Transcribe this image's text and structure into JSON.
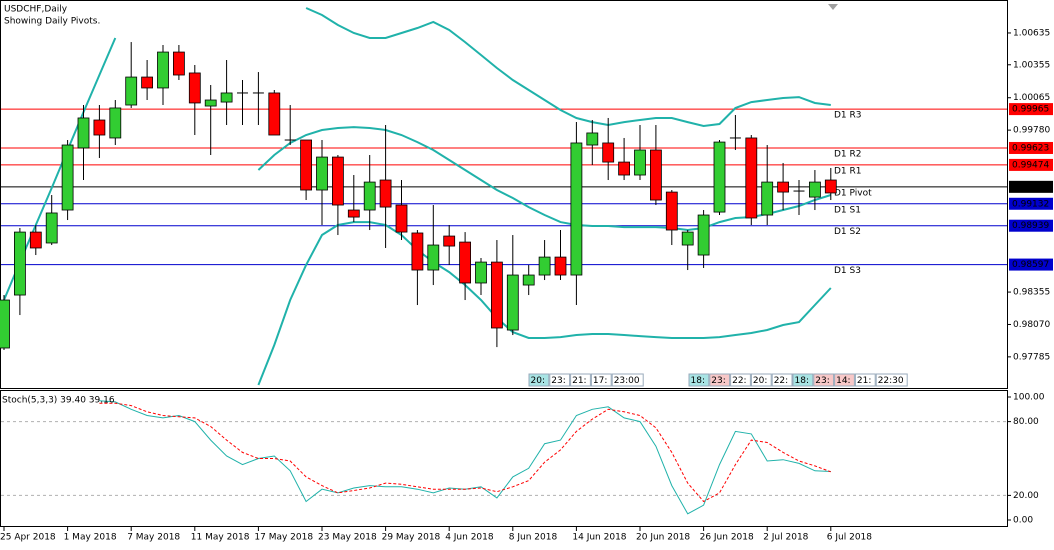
{
  "chart_data": [
    {
      "type": "candlestick",
      "title": "USDCHF,Daily",
      "subtitle": "Showing Daily Pivots.",
      "categories": [
        "25 Apr 2018",
        null,
        null,
        null,
        "1 May 2018",
        null,
        null,
        null,
        "7 May 2018",
        null,
        null,
        null,
        "11 May 2018",
        null,
        null,
        null,
        "17 May 2018",
        null,
        null,
        null,
        "23 May 2018",
        null,
        null,
        null,
        "29 May 2018",
        null,
        null,
        null,
        "4 Jun 2018",
        null,
        null,
        null,
        "8 Jun 2018",
        null,
        null,
        null,
        "14 Jun 2018",
        null,
        null,
        null,
        "20 Jun 2018",
        null,
        null,
        null,
        "26 Jun 2018",
        null,
        null,
        null,
        "2 Jul 2018",
        null,
        null,
        null,
        "6 Jul 2018"
      ],
      "open": [
        0.97863,
        0.98329,
        0.98883,
        0.98787,
        0.99077,
        0.99623,
        0.99869,
        0.99711,
        1.00001,
        1.00247,
        1.00151,
        1.00467,
        1.00283,
        0.99992,
        1.00027,
        1.00107,
        1.00107,
        1.00107,
        0.99693,
        0.99693,
        0.99253,
        0.99543,
        0.99077,
        0.99077,
        0.99341,
        0.99121,
        0.98875,
        0.98549,
        0.98848,
        0.98795,
        0.98435,
        0.98619,
        0.98021,
        0.98417,
        0.98505,
        0.98663,
        0.98505,
        0.99649,
        0.99667,
        0.99499,
        0.99385,
        0.99605,
        0.99235,
        0.98769,
        0.98681,
        0.99059,
        0.99711,
        0.99711,
        0.99033,
        0.99323,
        0.99244,
        0.99191,
        0.99341
      ],
      "high": [
        0.98329,
        0.98919,
        0.98945,
        0.99209,
        0.99693,
        1.00001,
        1.00001,
        1.00045,
        1.00555,
        1.00397,
        1.00529,
        1.00529,
        1.00353,
        1.00177,
        1.00397,
        1.00221,
        1.00291,
        1.00133,
        1.00001,
        0.99693,
        0.99693,
        0.99561,
        0.99385,
        0.99561,
        0.99825,
        0.99341,
        0.98901,
        0.99121,
        0.98945,
        0.98883,
        0.98655,
        0.98813,
        0.98857,
        0.98593,
        0.98813,
        0.98901,
        0.99851,
        0.99869,
        0.99887,
        0.99711,
        0.99825,
        0.99825,
        0.99253,
        0.98901,
        0.99077,
        0.99693,
        0.99913,
        0.99737,
        0.99649,
        0.99491,
        0.99341,
        0.99429,
        0.99447
      ],
      "low": [
        0.97845,
        0.98153,
        0.98681,
        0.98769,
        0.98989,
        0.99341,
        0.99535,
        0.99649,
        0.99975,
        1.00045,
        1.00001,
        1.00221,
        0.99737,
        0.99561,
        0.99825,
        0.99825,
        0.99825,
        0.99737,
        0.99649,
        0.99165,
        0.98945,
        0.98857,
        0.98971,
        0.98901,
        0.98743,
        0.98813,
        0.98241,
        0.98417,
        0.98593,
        0.98285,
        0.98329,
        0.97871,
        0.97977,
        0.98329,
        0.98461,
        0.98461,
        0.98241,
        0.99473,
        0.99341,
        0.99341,
        0.99341,
        0.99121,
        0.98769,
        0.98549,
        0.98567,
        0.99033,
        0.99605,
        0.98945,
        0.98945,
        0.99077,
        0.99033,
        0.99077,
        0.99165
      ],
      "close": [
        0.98285,
        0.98883,
        0.98743,
        0.99051,
        0.99649,
        0.99887,
        0.99737,
        0.99975,
        1.00247,
        1.00151,
        1.00467,
        1.00265,
        1.00019,
        1.00045,
        1.00107,
        1.00107,
        1.00107,
        0.99737,
        0.99693,
        0.99253,
        0.99543,
        0.99121,
        0.99015,
        0.99323,
        0.99103,
        0.98883,
        0.98549,
        0.98769,
        0.9876,
        0.98435,
        0.98619,
        0.98039,
        0.98505,
        0.98505,
        0.98663,
        0.98505,
        0.99667,
        0.99755,
        0.99499,
        0.99385,
        0.99605,
        0.99165,
        0.98901,
        0.98883,
        0.99033,
        0.99675,
        0.99711,
        0.99007,
        0.99323,
        0.99235,
        0.99244,
        0.99323,
        0.99227
      ],
      "up_color": "#32cd32",
      "down_color": "#ff0000",
      "series": [
        {
          "color": "#20b2aa",
          "values": [
            0.98285,
            0.98619,
            0.98945,
            0.99271,
            0.99605,
            0.99939,
            1.00265,
            1.00591,
            null,
            null,
            null,
            null,
            null,
            null,
            null,
            null,
            null,
            null,
            null,
            1.00855,
            1.00793,
            1.00705,
            1.00635,
            1.00591,
            1.00591,
            1.00635,
            1.00679,
            1.00731,
            1.00661,
            1.00555,
            1.00441,
            1.00327,
            1.00221,
            1.00133,
            1.00045,
            0.99957,
            0.99887,
            0.99851,
            0.99825,
            0.99851,
            0.99869,
            0.99887,
            0.99887,
            0.99851,
            0.99816,
            0.99834,
            0.99975,
            1.00027,
            1.00045,
            1.00063,
            1.00071,
            1.00019,
            1.00001
          ]
        },
        {
          "color": "#20b2aa",
          "values": [
            null,
            null,
            null,
            null,
            null,
            null,
            null,
            null,
            null,
            null,
            null,
            null,
            null,
            null,
            null,
            null,
            0.99429,
            0.99561,
            0.99667,
            0.99737,
            0.99781,
            0.99799,
            0.99807,
            0.99799,
            0.99781,
            0.99737,
            0.99675,
            0.99605,
            0.99517,
            0.99429,
            0.99341,
            0.99253,
            0.99183,
            0.99103,
            0.99033,
            0.98971,
            0.98945,
            0.98936,
            0.98936,
            0.98927,
            0.98927,
            0.98927,
            0.98919,
            0.98901,
            0.98919,
            0.98971,
            0.99007,
            0.99015,
            0.99042,
            0.99077,
            0.99112,
            0.99165,
            0.99209
          ]
        },
        {
          "color": "#20b2aa",
          "values": [
            null,
            null,
            null,
            null,
            null,
            null,
            null,
            null,
            null,
            null,
            null,
            null,
            null,
            null,
            null,
            null,
            0.97537,
            0.97889,
            0.98285,
            0.98593,
            0.98857,
            0.98945,
            0.98971,
            0.98971,
            0.98945,
            0.98857,
            0.98725,
            0.98619,
            0.98531,
            0.98417,
            0.98285,
            0.98127,
            0.98003,
            0.97951,
            0.97951,
            0.97959,
            0.97977,
            0.97986,
            0.97986,
            0.97977,
            0.97968,
            0.97959,
            0.97951,
            0.97951,
            0.97951,
            0.97959,
            0.97977,
            0.97995,
            0.98021,
            0.98065,
            0.98091,
            0.98241,
            0.98391
          ]
        }
      ],
      "levels": [
        {
          "name": "D1 R3",
          "value": 0.99965,
          "color": "#ff0000"
        },
        {
          "name": "D1 R2",
          "value": 0.99623,
          "color": "#ff0000"
        },
        {
          "name": "D1 R1",
          "value": 0.99474,
          "color": "#ff0000"
        },
        {
          "name": "D1 Pivot",
          "value": 0.99281,
          "color": "#000000"
        },
        {
          "name": "D1 S1",
          "value": 0.99132,
          "color": "#0000cd"
        },
        {
          "name": "D1 S2",
          "value": 0.98939,
          "color": "#0000cd"
        },
        {
          "name": "D1 S3",
          "value": 0.98597,
          "color": "#0000cd"
        }
      ],
      "ylim": [
        0.97511,
        1.00925
      ],
      "yticks": [
        1.00635,
        1.00355,
        1.00065,
        {
          "value": 0.9978,
          "label": "0.99780"
        },
        0.98355,
        {
          "value": 0.9807,
          "label": "0.98070"
        },
        0.97785
      ]
    },
    {
      "type": "line",
      "title": "Stoch(5,3,3) 39.40 39.16",
      "series": [
        {
          "color": "#20b2aa",
          "dash": false,
          "values": [
            null,
            null,
            null,
            null,
            null,
            null,
            97,
            96,
            90,
            85,
            83,
            85,
            80,
            65,
            52,
            45,
            50,
            52,
            40,
            15,
            25,
            22,
            26,
            28,
            27,
            27,
            25,
            22,
            26,
            25,
            27,
            18,
            35,
            42,
            62,
            65,
            85,
            90,
            92,
            83,
            80,
            60,
            28,
            5,
            12,
            45,
            72,
            70,
            48,
            49,
            46,
            40,
            39.4
          ]
        },
        {
          "color": "#ff0000",
          "dash": true,
          "values": [
            null,
            null,
            null,
            null,
            null,
            null,
            95,
            95,
            93,
            88,
            85,
            84,
            83,
            76,
            65,
            55,
            50,
            50,
            48,
            35,
            28,
            22,
            24,
            26,
            30,
            29,
            27,
            25,
            25,
            25,
            26,
            23,
            27,
            32,
            47,
            57,
            72,
            82,
            90,
            88,
            85,
            75,
            55,
            30,
            15,
            22,
            45,
            65,
            63,
            55,
            48,
            44,
            39.16
          ]
        }
      ],
      "levels": [
        80,
        20
      ],
      "ylim": [
        -5.7,
        105.7
      ],
      "yticks": [
        {
          "value": 100,
          "label": "100.00"
        },
        {
          "value": 80,
          "label": "80.00"
        },
        {
          "value": 20,
          "label": "20.00"
        },
        {
          "value": 0,
          "label": "0.00"
        }
      ]
    }
  ],
  "time_boxes": [
    [
      {
        "text": "20:",
        "color": "#a8e4e4"
      },
      {
        "text": "23:",
        "color": "#ffffff"
      },
      {
        "text": "21:",
        "color": "#ffffff"
      },
      {
        "text": "17:",
        "color": "#ffffff"
      },
      {
        "text": "23:00",
        "color": "#ffffff"
      }
    ],
    [
      {
        "text": "18:",
        "color": "#a8e4e4"
      },
      {
        "text": "23:",
        "color": "#f8c8c8"
      },
      {
        "text": "22:",
        "color": "#ffffff"
      },
      {
        "text": "20:",
        "color": "#ffffff"
      },
      {
        "text": "22:",
        "color": "#ffffff"
      },
      {
        "text": "18:",
        "color": "#a8e4e4"
      },
      {
        "text": "23:",
        "color": "#f8c8c8"
      },
      {
        "text": "14:",
        "color": "#f8c8c8"
      },
      {
        "text": "21:",
        "color": "#ffffff"
      },
      {
        "text": "22:30",
        "color": "#ffffff"
      }
    ]
  ]
}
